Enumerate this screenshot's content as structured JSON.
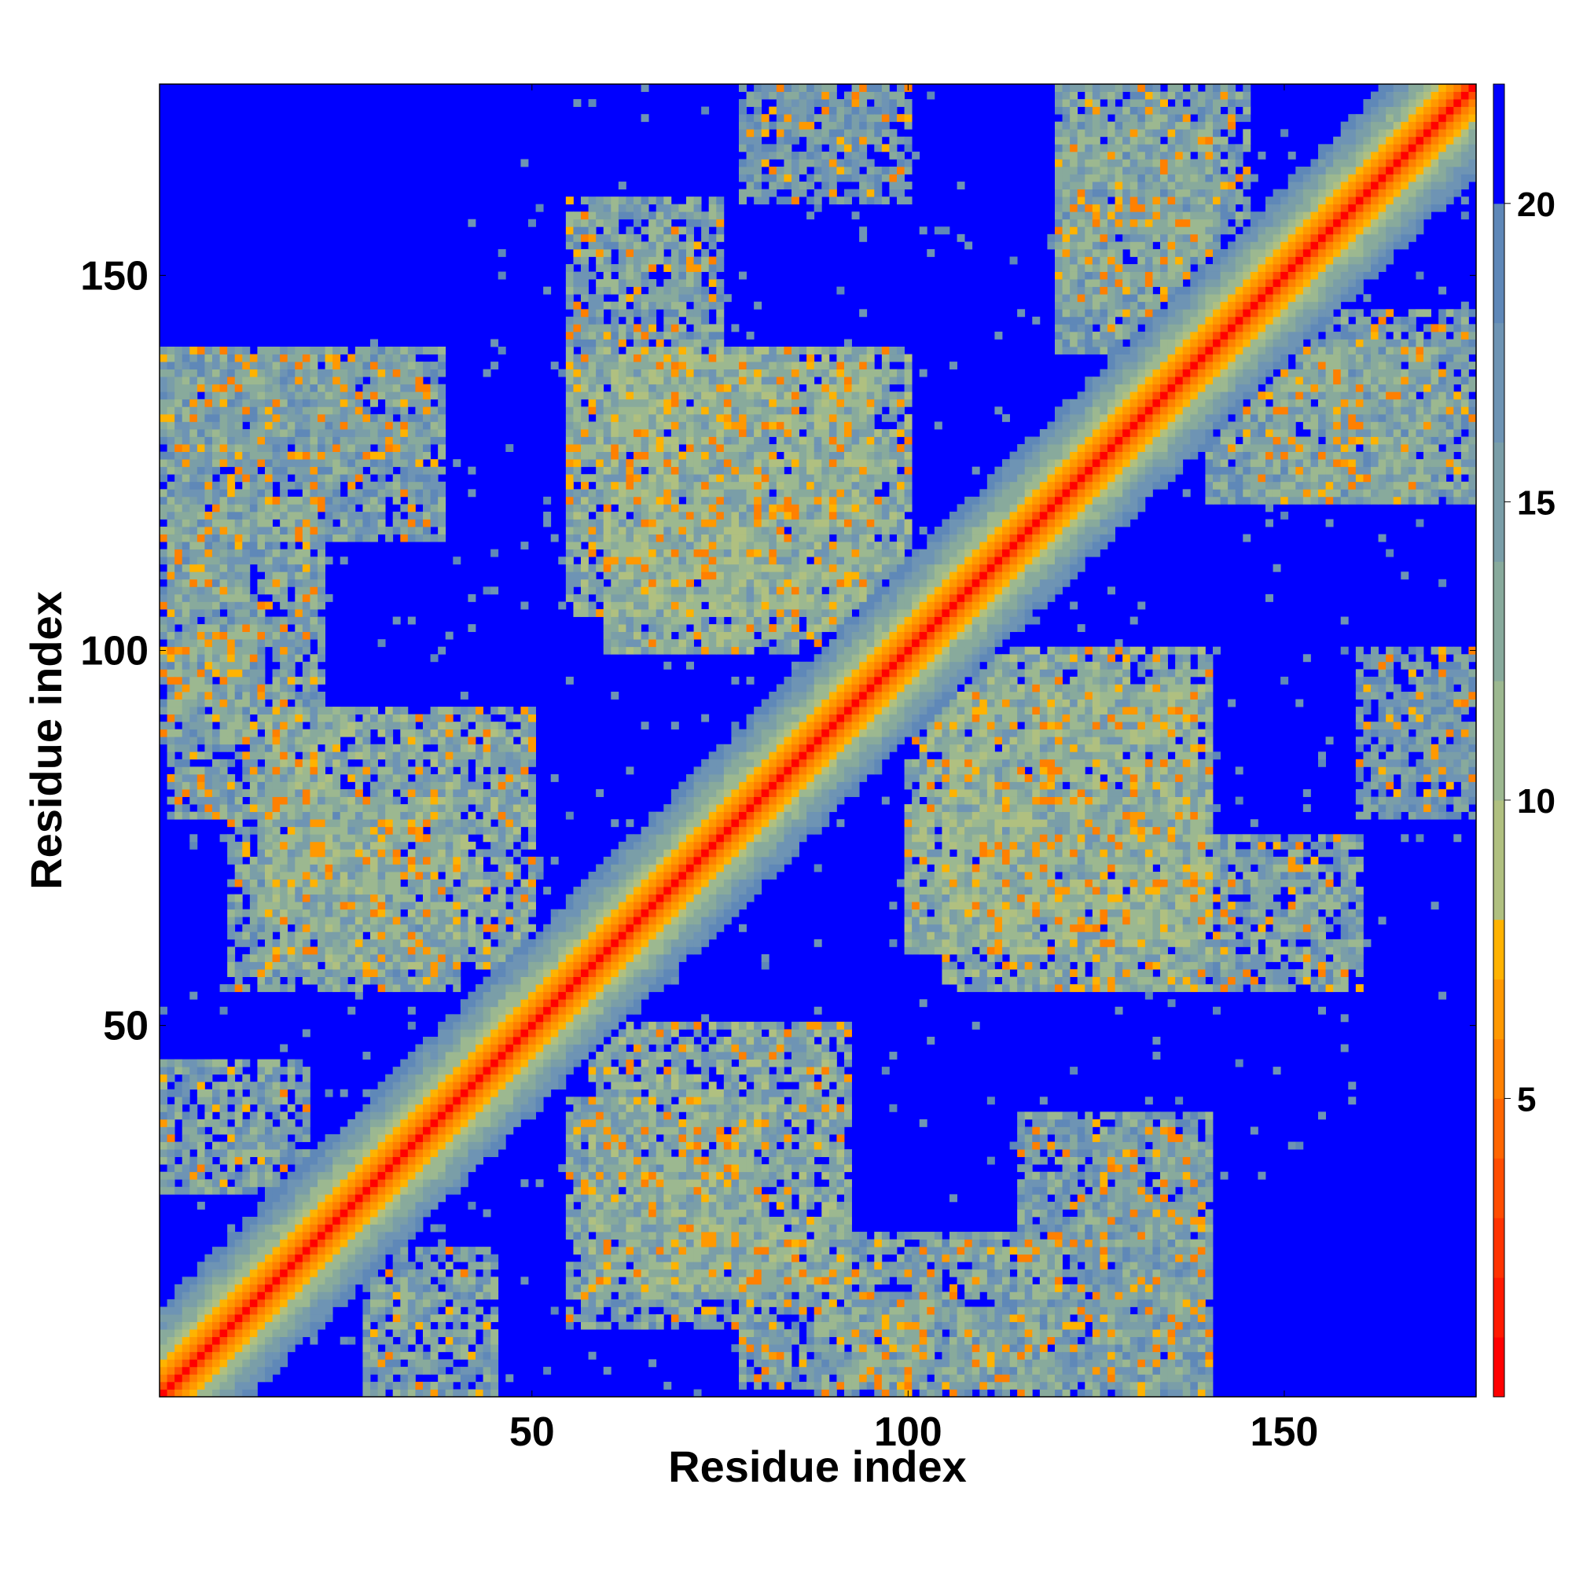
{
  "chart_data": {
    "type": "heatmap",
    "title": "",
    "xlabel": "Residue index",
    "ylabel": "Residue index",
    "xlim": [
      0.5,
      175.5
    ],
    "ylim": [
      0.5,
      175.5
    ],
    "x_ticks": [
      50,
      100,
      150
    ],
    "y_ticks": [
      50,
      100,
      150
    ],
    "x_tick_labels": [
      "50",
      "100",
      "150"
    ],
    "y_tick_labels": [
      "50",
      "100",
      "150"
    ],
    "n_residues": 175,
    "colorbar": {
      "range": [
        0,
        22
      ],
      "ticks": [
        5,
        10,
        15,
        20
      ],
      "tick_labels": [
        "5",
        "10",
        "15",
        "20"
      ],
      "levels": [
        {
          "min": 0,
          "max": 1,
          "color": "#ff0000"
        },
        {
          "min": 1,
          "max": 2,
          "color": "#ff1a00"
        },
        {
          "min": 2,
          "max": 3,
          "color": "#ff3300"
        },
        {
          "min": 3,
          "max": 4,
          "color": "#ff4d00"
        },
        {
          "min": 4,
          "max": 5,
          "color": "#ff6600"
        },
        {
          "min": 5,
          "max": 6,
          "color": "#ff8000"
        },
        {
          "min": 6,
          "max": 7,
          "color": "#ff9900"
        },
        {
          "min": 7,
          "max": 8,
          "color": "#ffb300"
        },
        {
          "min": 8,
          "max": 10,
          "color": "#b0c080"
        },
        {
          "min": 10,
          "max": 12,
          "color": "#9cb890"
        },
        {
          "min": 12,
          "max": 14,
          "color": "#88aa9c"
        },
        {
          "min": 14,
          "max": 16,
          "color": "#7a9ea8"
        },
        {
          "min": 16,
          "max": 18,
          "color": "#6e94b4"
        },
        {
          "min": 18,
          "max": 20,
          "color": "#5f88b8"
        },
        {
          "min": 20,
          "max": 22,
          "color": "#0000ff"
        }
      ]
    },
    "diagonal_band": {
      "self_distance": 0,
      "i_plus_1": 3.8,
      "i_plus_2": 5.5,
      "i_plus_3": 6.5,
      "i_plus_4": 7.5
    },
    "contact_regions": [
      {
        "i_range": [
          1,
          20
        ],
        "j_range": [
          28,
          45
        ],
        "mean_distance": 14
      },
      {
        "i_range": [
          1,
          12
        ],
        "j_range": [
          88,
          140
        ],
        "mean_distance": 15
      },
      {
        "i_range": [
          8,
          38
        ],
        "j_range": [
          115,
          140
        ],
        "mean_distance": 15
      },
      {
        "i_range": [
          15,
          50
        ],
        "j_range": [
          58,
          92
        ],
        "mean_distance": 13
      },
      {
        "i_range": [
          55,
          75
        ],
        "j_range": [
          125,
          160
        ],
        "mean_distance": 14
      },
      {
        "i_range": [
          60,
          95
        ],
        "j_range": [
          100,
          140
        ],
        "mean_distance": 13
      },
      {
        "i_range": [
          78,
          100
        ],
        "j_range": [
          160,
          175
        ],
        "mean_distance": 16
      },
      {
        "i_range": [
          55,
          80
        ],
        "j_range": [
          10,
          40
        ],
        "mean_distance": 14
      },
      {
        "i_range": [
          78,
          120
        ],
        "j_range": [
          2,
          22
        ],
        "mean_distance": 14
      },
      {
        "i_range": [
          105,
          140
        ],
        "j_range": [
          55,
          100
        ],
        "mean_distance": 13
      },
      {
        "i_range": [
          125,
          140
        ],
        "j_range": [
          2,
          35
        ],
        "mean_distance": 16
      },
      {
        "i_range": [
          120,
          145
        ],
        "j_range": [
          140,
          175
        ],
        "mean_distance": 15
      },
      {
        "i_range": [
          145,
          170
        ],
        "j_range": [
          120,
          140
        ],
        "mean_distance": 14
      },
      {
        "i_range": [
          168,
          175
        ],
        "j_range": [
          80,
          95
        ],
        "mean_distance": 17
      }
    ]
  }
}
